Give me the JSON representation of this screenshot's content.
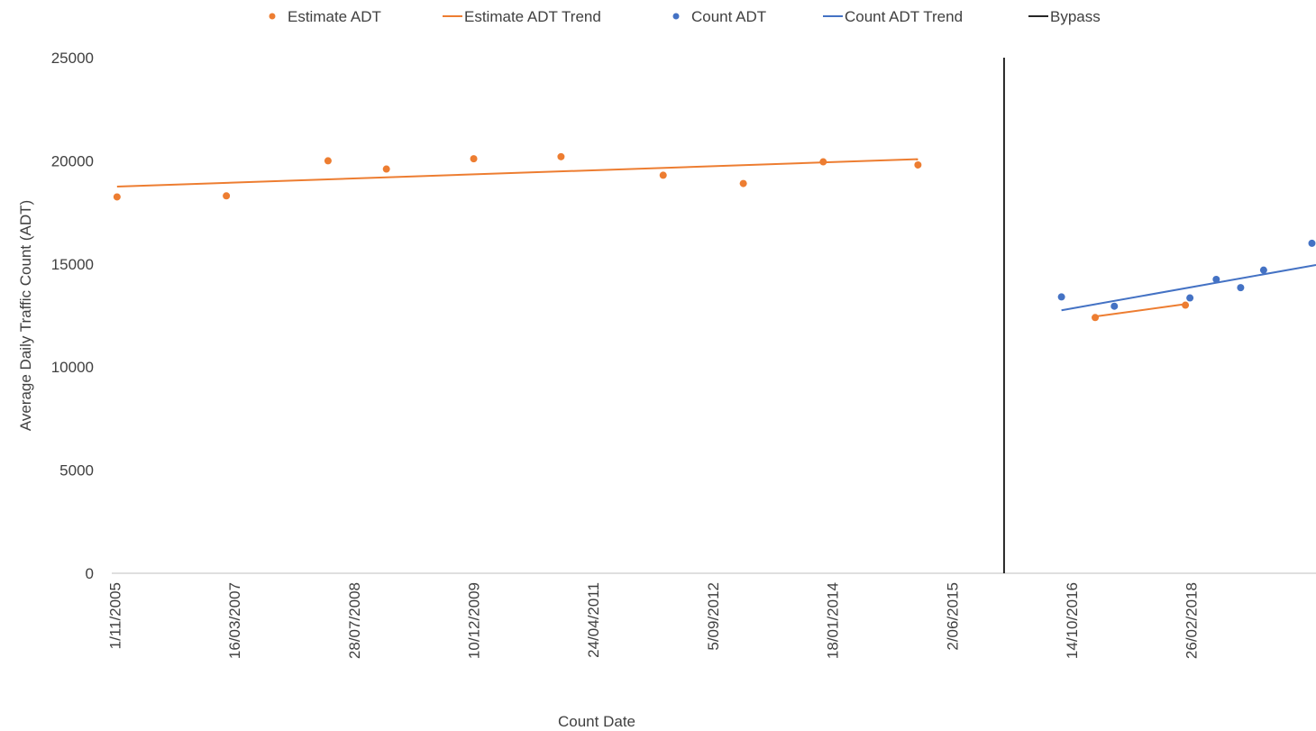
{
  "chart_data": {
    "type": "scatter",
    "xlabel": "Count Date",
    "ylabel": "Average Daily Traffic Count (ADT)",
    "ylim": [
      0,
      25000
    ],
    "y_ticks": [
      0,
      5000,
      10000,
      15000,
      20000,
      25000
    ],
    "xlim": [
      "2005-10-19",
      "2019-08-01"
    ],
    "x_tick_labels": [
      "1/11/2005",
      "16/03/2007",
      "28/07/2008",
      "10/12/2009",
      "24/04/2011",
      "5/09/2012",
      "18/01/2014",
      "2/06/2015",
      "14/10/2016",
      "26/02/2018"
    ],
    "x_ticks": [
      "2005-11-01",
      "2007-03-16",
      "2008-07-28",
      "2009-12-10",
      "2011-04-24",
      "2012-09-05",
      "2014-01-18",
      "2015-06-02",
      "2016-10-14",
      "2018-02-26"
    ],
    "legend_position": "top",
    "series": [
      {
        "name": "Estimate ADT",
        "kind": "scatter",
        "color": "#ED7D31",
        "x": [
          "2005-11-10",
          "2007-02-10",
          "2008-04-10",
          "2008-12-10",
          "2009-12-10",
          "2010-12-10",
          "2012-02-10",
          "2013-01-10",
          "2013-12-10",
          "2015-01-10",
          "2017-01-20",
          "2018-02-01"
        ],
        "y": [
          18250,
          18300,
          20000,
          19600,
          20100,
          20200,
          19300,
          18900,
          19950,
          19800,
          12400,
          13000
        ]
      },
      {
        "name": "Estimate ADT Trend",
        "kind": "line",
        "color": "#ED7D31",
        "segments": [
          {
            "x": [
              "2005-11-10",
              "2015-01-10"
            ],
            "y": [
              18750,
              20080
            ]
          },
          {
            "x": [
              "2017-01-20",
              "2018-02-01"
            ],
            "y": [
              12450,
              13050
            ]
          }
        ]
      },
      {
        "name": "Count ADT",
        "kind": "scatter",
        "color": "#4472C4",
        "x": [
          "2016-09-01",
          "2017-04-10",
          "2018-02-20",
          "2018-06-10",
          "2018-09-20",
          "2018-12-25",
          "2019-07-15"
        ],
        "y": [
          13400,
          12950,
          13350,
          14250,
          13850,
          14700,
          16000
        ]
      },
      {
        "name": "Count ADT Trend",
        "kind": "line",
        "color": "#4472C4",
        "segments": [
          {
            "x": [
              "2016-09-01",
              "2019-08-01"
            ],
            "y": [
              12750,
              14950
            ]
          }
        ]
      },
      {
        "name": "Bypass",
        "kind": "vline",
        "color": "#262626",
        "x": "2016-01-05",
        "y": [
          0,
          25000
        ]
      }
    ]
  }
}
